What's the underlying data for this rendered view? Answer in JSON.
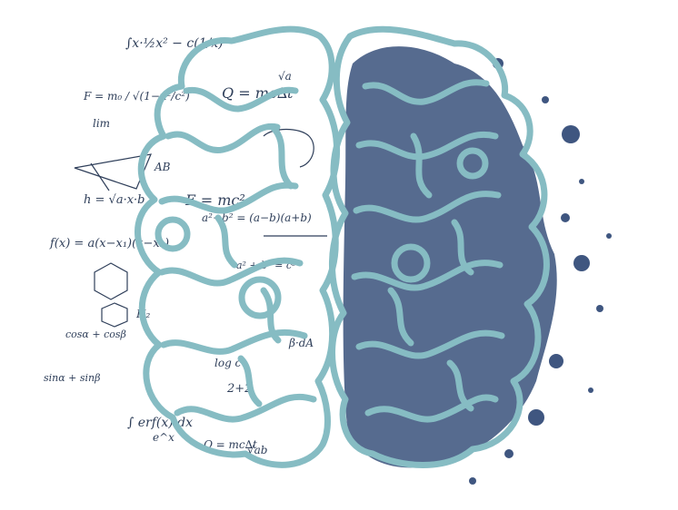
{
  "image": {
    "formulas": [
      "∫x·½x² − c(1/x)",
      "F = m₀ / √(1−u²/c²)",
      "lim",
      "Q = mc∆t",
      "h = √a·x·b",
      "f(x) = a(x−x₁)(x−x₂)",
      "cosα + cosβ",
      "sinα + sinβ",
      "E = mc²",
      "a²−b² = (a−b)(a+b)",
      "a² + b² = c²",
      "∫ erf(x) dx",
      "H₂",
      "log c",
      "e^x",
      "2+2",
      "AB",
      "β·dA",
      "√ab",
      "Q = mc∆t",
      "√a"
    ],
    "colors": {
      "outline": "#86bcc3",
      "ink": "#3f5680",
      "formula": "#2f3f5a",
      "background": "#ffffff"
    }
  }
}
